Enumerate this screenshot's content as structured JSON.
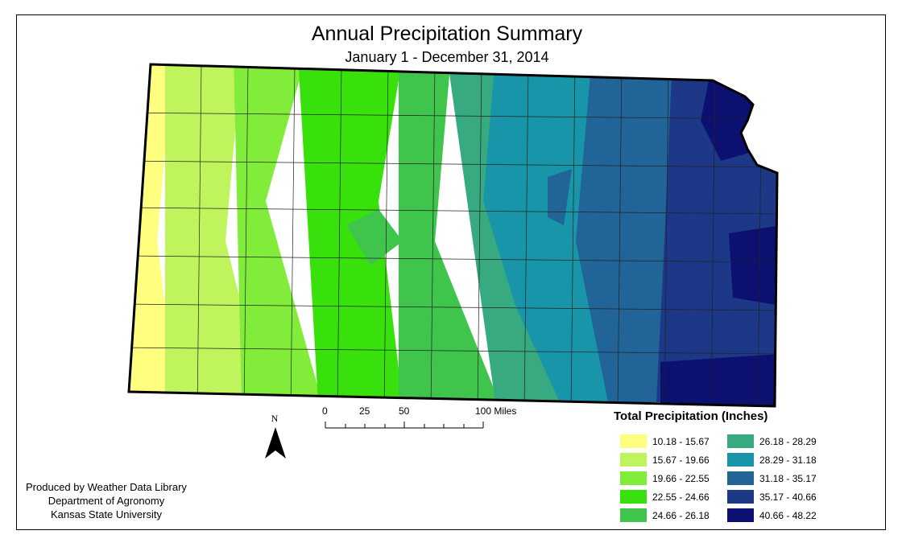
{
  "title": "Annual Precipitation Summary",
  "subtitle": "January 1 - December 31, 2014",
  "legend": {
    "title": "Total Precipitation (Inches)",
    "items": [
      {
        "label": "10.18 - 15.67",
        "color": "#ffff7f"
      },
      {
        "label": "15.67 - 19.66",
        "color": "#c0f45c"
      },
      {
        "label": "19.66 - 22.55",
        "color": "#82ec3a"
      },
      {
        "label": "22.55 - 24.66",
        "color": "#38e00c"
      },
      {
        "label": "24.66 - 26.18",
        "color": "#3fc44c"
      },
      {
        "label": "26.18 - 28.29",
        "color": "#37aa80"
      },
      {
        "label": "28.29 - 31.18",
        "color": "#1895a8"
      },
      {
        "label": "31.18 - 35.17",
        "color": "#206498"
      },
      {
        "label": "35.17 - 40.66",
        "color": "#1c3886"
      },
      {
        "label": "40.66 - 48.22",
        "color": "#0c1070"
      }
    ]
  },
  "scale_bar": {
    "ticks": [
      "0",
      "25",
      "50",
      "100 Miles"
    ]
  },
  "north_arrow": "N",
  "credits": [
    "Produced by Weather Data Library",
    "Department of Agronomy",
    "Kansas State University"
  ]
}
